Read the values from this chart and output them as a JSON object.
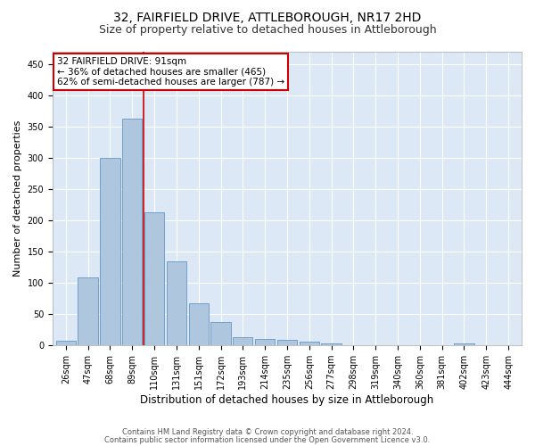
{
  "title": "32, FAIRFIELD DRIVE, ATTLEBOROUGH, NR17 2HD",
  "subtitle": "Size of property relative to detached houses in Attleborough",
  "xlabel": "Distribution of detached houses by size in Attleborough",
  "ylabel": "Number of detached properties",
  "categories": [
    "26sqm",
    "47sqm",
    "68sqm",
    "89sqm",
    "110sqm",
    "131sqm",
    "151sqm",
    "172sqm",
    "193sqm",
    "214sqm",
    "235sqm",
    "256sqm",
    "277sqm",
    "298sqm",
    "319sqm",
    "340sqm",
    "360sqm",
    "381sqm",
    "402sqm",
    "423sqm",
    "444sqm"
  ],
  "values": [
    8,
    108,
    300,
    362,
    212,
    135,
    68,
    38,
    13,
    10,
    9,
    6,
    3,
    1,
    0,
    0,
    0,
    0,
    3,
    0,
    0
  ],
  "bar_color": "#aec6de",
  "bar_edge_color": "#6496c8",
  "vline_x_index": 3.5,
  "vline_color": "#cc0000",
  "annotation_text": "32 FAIRFIELD DRIVE: 91sqm\n← 36% of detached houses are smaller (465)\n62% of semi-detached houses are larger (787) →",
  "annotation_box_color": "#ffffff",
  "annotation_box_edge_color": "#cc0000",
  "ylim": [
    0,
    470
  ],
  "yticks": [
    0,
    50,
    100,
    150,
    200,
    250,
    300,
    350,
    400,
    450
  ],
  "footer1": "Contains HM Land Registry data © Crown copyright and database right 2024.",
  "footer2": "Contains public sector information licensed under the Open Government Licence v3.0.",
  "bg_color": "#dce8f5",
  "fig_bg_color": "#ffffff",
  "title_fontsize": 10,
  "subtitle_fontsize": 9,
  "tick_fontsize": 7,
  "ylabel_fontsize": 8,
  "xlabel_fontsize": 8.5,
  "footer_fontsize": 6,
  "annotation_fontsize": 7.5
}
